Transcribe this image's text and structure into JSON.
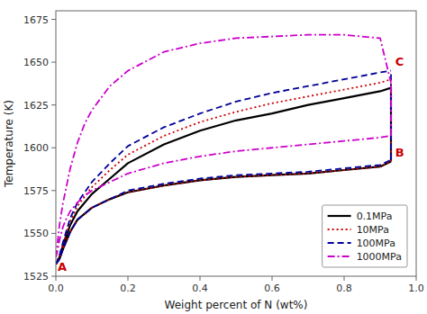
{
  "chart_data": {
    "type": "line",
    "xlabel": "Weight percent of N (wt%)",
    "ylabel": "Temperature (K)",
    "xlim": [
      0.0,
      1.0
    ],
    "ylim": [
      1525,
      1680
    ],
    "xticks": [
      {
        "value": 0.0,
        "label": "0.0"
      },
      0.2,
      0.4,
      0.6,
      0.8,
      {
        "value": 1.0,
        "label": "1.0"
      }
    ],
    "yticks": [
      1525,
      1550,
      1575,
      1600,
      1625,
      1650,
      1675
    ],
    "grid": false,
    "legend": "lower right",
    "series": [
      {
        "name": "0.1MPa",
        "color": "#000000",
        "line_style": "solid",
        "x": [
          0.0,
          0.01,
          0.02,
          0.04,
          0.06,
          0.1,
          0.15,
          0.2,
          0.3,
          0.4,
          0.5,
          0.6,
          0.7,
          0.8,
          0.9,
          0.93,
          null,
          0.0,
          0.01,
          0.02,
          0.04,
          0.06,
          0.1,
          0.15,
          0.2,
          0.3,
          0.4,
          0.5,
          0.6,
          0.7,
          0.8,
          0.9,
          0.93,
          null,
          0.93,
          0.93
        ],
        "values": [
          1532,
          1535,
          1541,
          1551,
          1558,
          1565,
          1570,
          1574,
          1578,
          1581,
          1583,
          1584,
          1585,
          1587,
          1589,
          1592,
          null,
          1532,
          1536,
          1543,
          1555,
          1563,
          1573,
          1582,
          1591,
          1602,
          1610,
          1616,
          1620,
          1625,
          1629,
          1633,
          1635,
          null,
          1592,
          1635
        ]
      },
      {
        "name": "10MPa",
        "color": "#cc0000",
        "line_style": "dotted",
        "x": [
          0.0,
          0.01,
          0.02,
          0.04,
          0.06,
          0.1,
          0.15,
          0.2,
          0.3,
          0.4,
          0.5,
          0.6,
          0.7,
          0.8,
          0.9,
          0.93,
          null,
          0.0,
          0.01,
          0.02,
          0.04,
          0.06,
          0.1,
          0.15,
          0.2,
          0.3,
          0.4,
          0.5,
          0.6,
          0.7,
          0.8,
          0.9,
          0.93,
          null,
          0.93,
          0.93
        ],
        "values": [
          1532,
          1535,
          1541,
          1551,
          1558,
          1565,
          1570,
          1574,
          1578,
          1581,
          1583,
          1584,
          1585,
          1587,
          1589,
          1592,
          null,
          1532,
          1537,
          1544,
          1557,
          1566,
          1577,
          1587,
          1596,
          1607,
          1615,
          1621,
          1626,
          1630,
          1634,
          1638,
          1640,
          null,
          1592,
          1640
        ]
      },
      {
        "name": "100MPa",
        "color": "#000099",
        "line_style": "dashed",
        "x": [
          0.0,
          0.01,
          0.02,
          0.04,
          0.06,
          0.1,
          0.15,
          0.2,
          0.3,
          0.4,
          0.5,
          0.6,
          0.7,
          0.8,
          0.9,
          0.93,
          null,
          0.0,
          0.01,
          0.02,
          0.04,
          0.06,
          0.1,
          0.15,
          0.2,
          0.3,
          0.4,
          0.5,
          0.6,
          0.7,
          0.8,
          0.9,
          0.93,
          null,
          0.93,
          0.93
        ],
        "values": [
          1532,
          1535,
          1541,
          1551,
          1558,
          1565,
          1570,
          1575,
          1579,
          1582,
          1584,
          1585,
          1586,
          1588,
          1590,
          1593,
          null,
          1532,
          1537,
          1545,
          1559,
          1568,
          1580,
          1591,
          1601,
          1612,
          1620,
          1627,
          1632,
          1636,
          1640,
          1644,
          1645,
          null,
          1593,
          1645
        ]
      },
      {
        "name": "1000MPa",
        "color": "#cc00cc",
        "line_style": "dashdot",
        "x": [
          0.0,
          0.005,
          0.01,
          0.02,
          0.03,
          0.04,
          0.06,
          0.08,
          0.1,
          0.15,
          0.2,
          0.3,
          0.4,
          0.5,
          0.6,
          0.7,
          0.8,
          0.9,
          0.93,
          null,
          0.0,
          0.005,
          0.01,
          0.02,
          0.03,
          0.04,
          0.06,
          0.08,
          0.1,
          0.15,
          0.2,
          0.3,
          0.4,
          0.5,
          0.6,
          0.7,
          0.8,
          0.9,
          0.93,
          null,
          0.93,
          0.93
        ],
        "values": [
          1536,
          1540,
          1546,
          1554,
          1559,
          1563,
          1568,
          1572,
          1575,
          1580,
          1585,
          1591,
          1595,
          1598,
          1600,
          1602,
          1604,
          1606,
          1607,
          null,
          1536,
          1545,
          1555,
          1568,
          1578,
          1588,
          1603,
          1614,
          1622,
          1636,
          1645,
          1656,
          1661,
          1664,
          1665,
          1666,
          1666,
          1664,
          1638,
          null,
          1607,
          1638
        ]
      }
    ],
    "annotations": [
      {
        "text": "A",
        "x": 0.005,
        "y": 1527,
        "color": "#cc0000"
      },
      {
        "text": "B",
        "x": 0.942,
        "y": 1594,
        "color": "#cc0000"
      },
      {
        "text": "C",
        "x": 0.942,
        "y": 1647,
        "color": "#cc0000"
      }
    ]
  }
}
